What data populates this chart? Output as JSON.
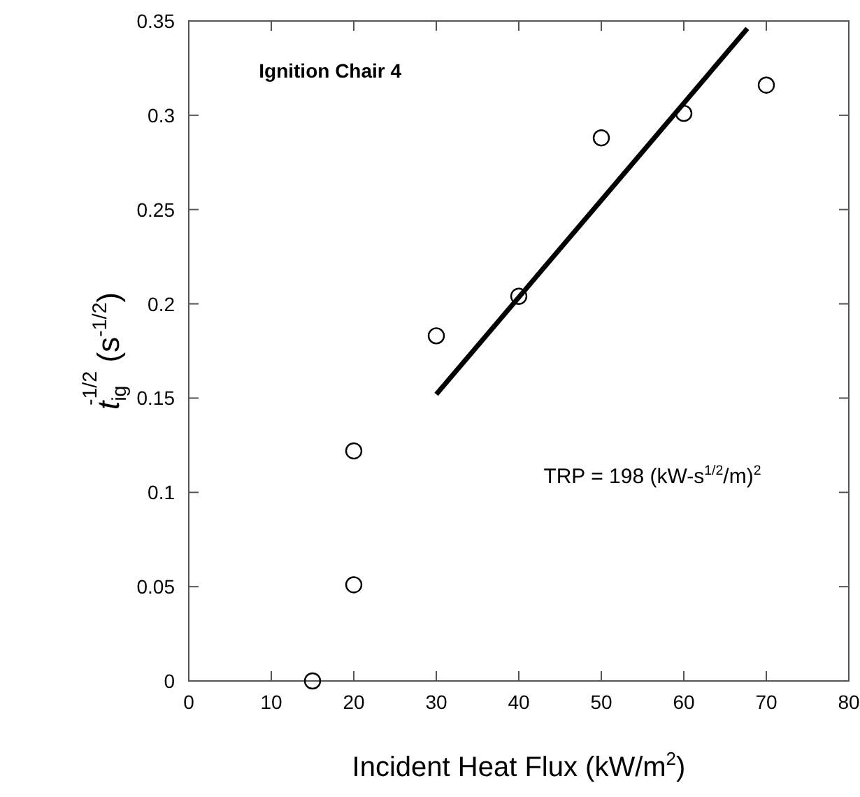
{
  "chart_data": {
    "type": "scatter",
    "title": "Ignition Chair 4",
    "xlabel": "Incident Heat Flux (kW/m$^{2}$)",
    "ylabel": "t$_{ig}$$^{-1/2}$ (s$^{-1/2}$)",
    "annotations": [
      "TRP = 198 (kW-s$^{1/2}$/m)$^{2}$"
    ],
    "xlim": [
      0,
      80
    ],
    "xticks": [
      0,
      10,
      20,
      30,
      40,
      50,
      60,
      70,
      80
    ],
    "ylim": [
      0,
      0.35
    ],
    "yticks": [
      0,
      0.05,
      0.1,
      0.15,
      0.2,
      0.25,
      0.3,
      0.35
    ],
    "grid": false,
    "series": [
      {
        "color": "#000000",
        "marker": "circle",
        "x": [
          15,
          20,
          20,
          30,
          40,
          50,
          60,
          70
        ],
        "values": [
          0,
          0.051,
          0.122,
          0.183,
          0.204,
          0.288,
          0.301,
          0.316
        ]
      },
      {
        "type": "line",
        "color": "#000000",
        "line_style": "solid",
        "x": [
          30,
          67.7
        ],
        "values": [
          0.152,
          0.346
        ]
      }
    ]
  }
}
